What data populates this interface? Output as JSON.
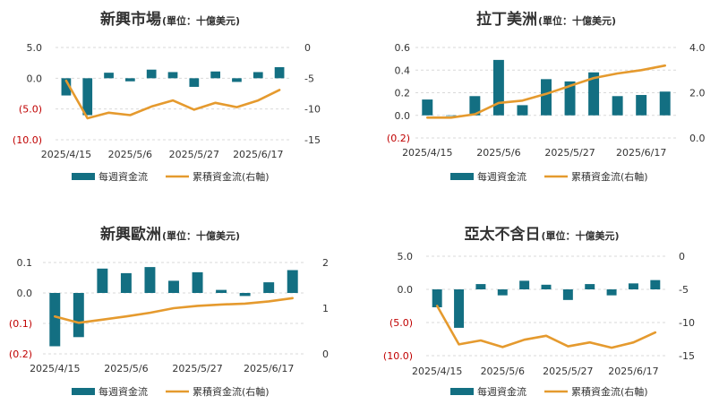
{
  "colors": {
    "bar": "#136F82",
    "line": "#E59A2E",
    "grid": "#D9D9D9",
    "text": "#333333",
    "negative": "#C00000"
  },
  "legend": {
    "bar_label": "每週資金流",
    "line_label": "累積資金流(右軸)"
  },
  "chart_data": [
    {
      "type": "bar+line",
      "title": "新興市場",
      "unit": "(單位：十億美元)",
      "x_ticks": [
        "2025/4/15",
        "2025/5/6",
        "2025/5/27",
        "2025/6/17"
      ],
      "left_axis": {
        "min": -10,
        "max": 5,
        "ticks": [
          5,
          0,
          -5,
          -10
        ],
        "labels": [
          "5.0",
          "0.0",
          "(5.0)",
          "(10.0)"
        ]
      },
      "right_axis": {
        "min": -15,
        "max": 0,
        "ticks": [
          0,
          -5,
          -10,
          -15
        ],
        "labels": [
          "0",
          "-5",
          "-10",
          "-15"
        ]
      },
      "weekly_flow": [
        -2.8,
        -6.0,
        0.9,
        -0.5,
        1.4,
        1.0,
        -1.4,
        1.1,
        -0.6,
        1.0,
        1.8
      ],
      "cumulative_flow": [
        -5.4,
        -11.5,
        -10.6,
        -11.0,
        -9.6,
        -8.6,
        -10.1,
        -9.0,
        -9.7,
        -8.6,
        -6.9
      ]
    },
    {
      "type": "bar+line",
      "title": "拉丁美洲",
      "unit": "(單位：十億美元)",
      "x_ticks": [
        "2025/4/15",
        "2025/5/6",
        "2025/5/27",
        "2025/6/17"
      ],
      "left_axis": {
        "min": -0.2,
        "max": 0.6,
        "ticks": [
          0.6,
          0.4,
          0.2,
          0.0,
          -0.2
        ],
        "labels": [
          "0.6",
          "0.4",
          "0.2",
          "0.0",
          "(0.2)"
        ]
      },
      "right_axis": {
        "min": 0,
        "max": 4,
        "ticks": [
          4,
          2,
          0
        ],
        "labels": [
          "4.0",
          "2.0",
          "0.0"
        ]
      },
      "weekly_flow": [
        0.14,
        0.0,
        0.17,
        0.49,
        0.09,
        0.32,
        0.3,
        0.38,
        0.17,
        0.18,
        0.21
      ],
      "cumulative_flow": [
        0.9,
        0.9,
        1.05,
        1.55,
        1.65,
        1.95,
        2.3,
        2.65,
        2.85,
        3.0,
        3.2
      ]
    },
    {
      "type": "bar+line",
      "title": "新興歐洲",
      "unit": "(單位：十億美元)",
      "x_ticks": [
        "2025/4/15",
        "2025/5/6",
        "2025/5/27",
        "2025/6/17"
      ],
      "left_axis": {
        "min": -0.2,
        "max": 0.1,
        "ticks": [
          0.1,
          0.0,
          -0.1,
          -0.2
        ],
        "labels": [
          "0.1",
          "0.0",
          "(0.1)",
          "(0.2)"
        ]
      },
      "right_axis": {
        "min": 0,
        "max": 2,
        "ticks": [
          2,
          1,
          0
        ],
        "labels": [
          "2",
          "1",
          "0"
        ]
      },
      "weekly_flow": [
        -0.175,
        -0.145,
        0.08,
        0.065,
        0.085,
        0.04,
        0.068,
        0.01,
        -0.01,
        0.035,
        0.075
      ],
      "cumulative_flow": [
        0.82,
        0.68,
        0.75,
        0.82,
        0.9,
        1.0,
        1.05,
        1.08,
        1.1,
        1.15,
        1.22
      ]
    },
    {
      "type": "bar+line",
      "title": "亞太不含日",
      "unit": "(單位：十億美元)",
      "x_ticks": [
        "2025/4/15",
        "2025/5/6",
        "2025/5/27",
        "2025/6/17"
      ],
      "left_axis": {
        "min": -10,
        "max": 5,
        "ticks": [
          5,
          0,
          -5,
          -10
        ],
        "labels": [
          "5.0",
          "0.0",
          "(5.0)",
          "(10.0)"
        ]
      },
      "right_axis": {
        "min": -15,
        "max": 0,
        "ticks": [
          0,
          -5,
          -10,
          -15
        ],
        "labels": [
          "0",
          "-5",
          "-10",
          "-15"
        ]
      },
      "weekly_flow": [
        -2.7,
        -5.8,
        0.8,
        -0.9,
        1.3,
        0.7,
        -1.6,
        0.8,
        -0.9,
        0.9,
        1.4
      ],
      "cumulative_flow": [
        -7.5,
        -13.3,
        -12.7,
        -13.7,
        -12.6,
        -12.0,
        -13.6,
        -13.0,
        -13.8,
        -13.0,
        -11.5
      ]
    }
  ]
}
